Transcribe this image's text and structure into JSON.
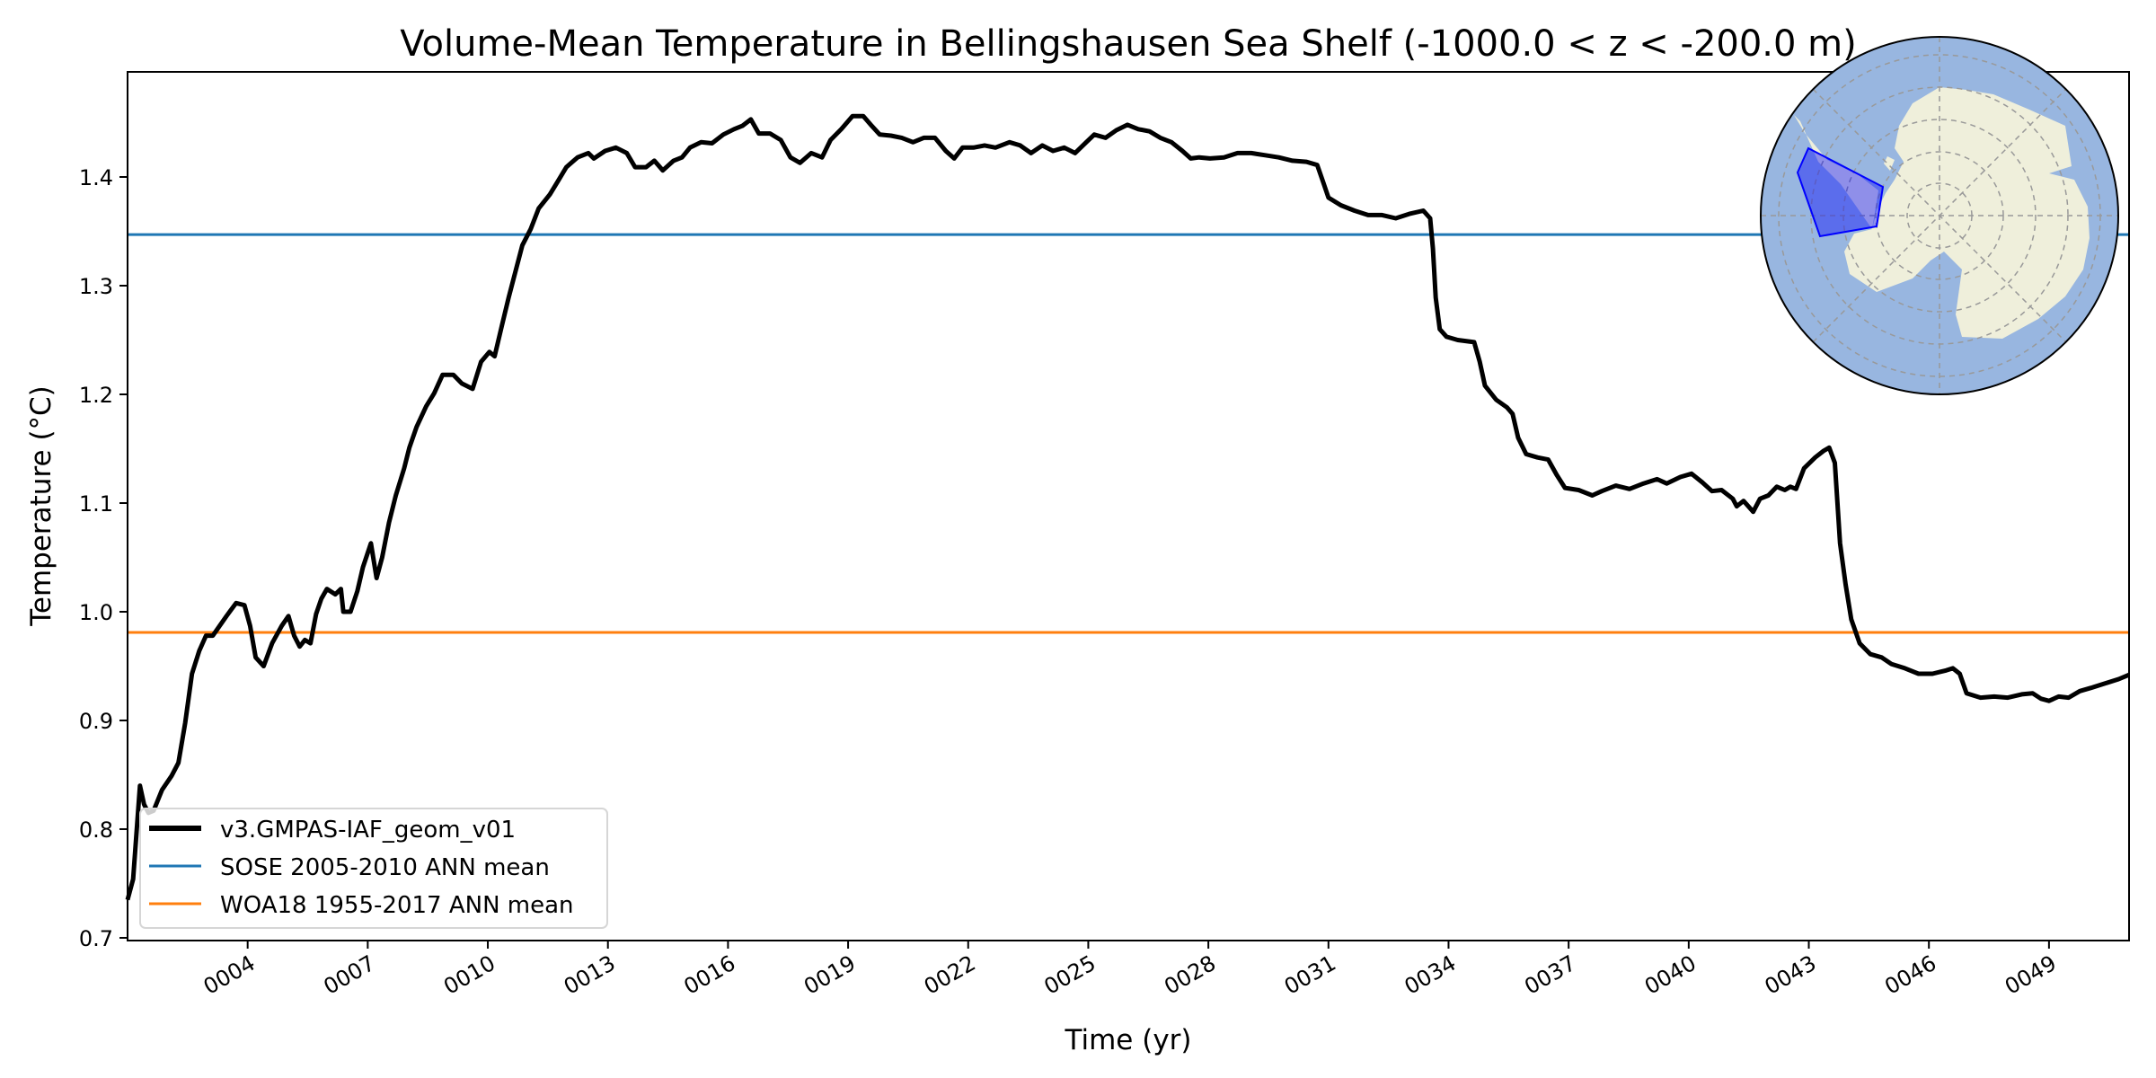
{
  "chart_data": {
    "type": "line",
    "title": "Volume-Mean Temperature in Bellingshausen Sea Shelf (-1000.0 < z < -200.0 m)",
    "xlabel": "Time (yr)",
    "ylabel": "Temperature ($^\\circ$C)",
    "ylabel_display": "Temperature (°C)",
    "xlim": [
      1,
      51
    ],
    "ylim": [
      0.6975,
      1.4967
    ],
    "xticks": [
      4,
      7,
      10,
      13,
      16,
      19,
      22,
      25,
      28,
      31,
      34,
      37,
      40,
      43,
      46,
      49
    ],
    "xtick_labels": [
      "0004",
      "0007",
      "0010",
      "0013",
      "0016",
      "0019",
      "0022",
      "0025",
      "0028",
      "0031",
      "0034",
      "0037",
      "0040",
      "0043",
      "0046",
      "0049"
    ],
    "yticks": [
      0.7,
      0.8,
      0.9,
      1.0,
      1.1,
      1.2,
      1.3,
      1.4
    ],
    "ytick_labels": [
      "0.7",
      "0.8",
      "0.9",
      "1.0",
      "1.1",
      "1.2",
      "1.3",
      "1.4"
    ],
    "grid": false,
    "legend_position": "bottom-left",
    "series": [
      {
        "name": "v3.GMPAS-IAF_geom_v01",
        "color": "#000000",
        "x": [
          1.0,
          1.14,
          1.24,
          1.31,
          1.41,
          1.52,
          1.65,
          1.86,
          2.1,
          2.27,
          2.44,
          2.61,
          2.79,
          2.96,
          3.13,
          3.3,
          3.47,
          3.71,
          3.92,
          4.06,
          4.2,
          4.4,
          4.61,
          4.85,
          5.02,
          5.16,
          5.3,
          5.43,
          5.57,
          5.71,
          5.84,
          5.98,
          6.19,
          6.33,
          6.39,
          6.57,
          6.74,
          6.88,
          7.08,
          7.22,
          7.36,
          7.53,
          7.7,
          7.91,
          8.04,
          8.22,
          8.46,
          8.66,
          8.87,
          9.14,
          9.35,
          9.62,
          9.83,
          10.04,
          10.17,
          10.35,
          10.52,
          10.69,
          10.86,
          11.07,
          11.27,
          11.55,
          11.75,
          11.96,
          12.24,
          12.51,
          12.65,
          12.93,
          13.2,
          13.47,
          13.68,
          13.95,
          14.16,
          14.37,
          14.64,
          14.85,
          15.05,
          15.33,
          15.6,
          15.88,
          16.15,
          16.36,
          16.57,
          16.77,
          17.05,
          17.32,
          17.56,
          17.8,
          18.08,
          18.35,
          18.56,
          18.83,
          19.11,
          19.38,
          19.59,
          19.79,
          20.07,
          20.34,
          20.62,
          20.89,
          21.17,
          21.44,
          21.65,
          21.86,
          22.13,
          22.41,
          22.68,
          23.03,
          23.3,
          23.57,
          23.85,
          24.12,
          24.4,
          24.67,
          24.95,
          25.15,
          25.43,
          25.7,
          25.98,
          26.25,
          26.53,
          26.8,
          27.08,
          27.35,
          27.56,
          27.77,
          28.04,
          28.39,
          28.73,
          29.07,
          29.42,
          29.76,
          30.1,
          30.45,
          30.72,
          30.86,
          31.0,
          31.31,
          31.65,
          31.99,
          32.34,
          32.68,
          33.02,
          33.37,
          33.54,
          33.61,
          33.68,
          33.78,
          33.95,
          34.23,
          34.64,
          34.78,
          34.91,
          35.19,
          35.46,
          35.6,
          35.74,
          35.94,
          36.22,
          36.49,
          36.7,
          36.91,
          37.25,
          37.59,
          37.83,
          38.18,
          38.52,
          38.87,
          39.21,
          39.45,
          39.79,
          40.07,
          40.34,
          40.58,
          40.82,
          41.1,
          41.2,
          41.37,
          41.61,
          41.78,
          41.99,
          42.2,
          42.4,
          42.54,
          42.68,
          42.88,
          43.16,
          43.37,
          43.51,
          43.65,
          43.78,
          43.92,
          44.06,
          44.27,
          44.54,
          44.82,
          45.06,
          45.4,
          45.74,
          46.09,
          46.43,
          46.6,
          46.77,
          46.94,
          47.29,
          47.63,
          47.97,
          48.32,
          48.59,
          48.8,
          49.0,
          49.24,
          49.49,
          49.77,
          50.05,
          50.4,
          50.74,
          51.0
        ],
        "y": [
          0.735,
          0.754,
          0.805,
          0.84,
          0.823,
          0.815,
          0.817,
          0.836,
          0.849,
          0.861,
          0.898,
          0.943,
          0.964,
          0.978,
          0.978,
          0.987,
          0.996,
          1.008,
          1.006,
          0.987,
          0.958,
          0.95,
          0.971,
          0.987,
          0.996,
          0.978,
          0.968,
          0.974,
          0.971,
          0.998,
          1.012,
          1.021,
          1.016,
          1.021,
          1.0,
          1.0,
          1.019,
          1.041,
          1.063,
          1.031,
          1.05,
          1.082,
          1.107,
          1.132,
          1.151,
          1.17,
          1.189,
          1.201,
          1.218,
          1.218,
          1.21,
          1.205,
          1.23,
          1.239,
          1.235,
          1.263,
          1.289,
          1.313,
          1.337,
          1.352,
          1.371,
          1.384,
          1.396,
          1.409,
          1.418,
          1.422,
          1.417,
          1.424,
          1.427,
          1.422,
          1.409,
          1.409,
          1.415,
          1.406,
          1.415,
          1.418,
          1.427,
          1.432,
          1.431,
          1.439,
          1.444,
          1.447,
          1.453,
          1.44,
          1.44,
          1.434,
          1.418,
          1.413,
          1.422,
          1.418,
          1.434,
          1.444,
          1.456,
          1.456,
          1.447,
          1.439,
          1.438,
          1.436,
          1.432,
          1.436,
          1.436,
          1.424,
          1.417,
          1.427,
          1.427,
          1.429,
          1.427,
          1.432,
          1.429,
          1.422,
          1.429,
          1.424,
          1.427,
          1.422,
          1.432,
          1.439,
          1.436,
          1.443,
          1.448,
          1.444,
          1.442,
          1.436,
          1.432,
          1.424,
          1.417,
          1.418,
          1.417,
          1.418,
          1.422,
          1.422,
          1.42,
          1.418,
          1.415,
          1.414,
          1.411,
          1.396,
          1.381,
          1.374,
          1.369,
          1.365,
          1.365,
          1.362,
          1.366,
          1.369,
          1.362,
          1.334,
          1.289,
          1.26,
          1.253,
          1.25,
          1.248,
          1.23,
          1.208,
          1.195,
          1.188,
          1.182,
          1.16,
          1.145,
          1.142,
          1.14,
          1.126,
          1.114,
          1.112,
          1.107,
          1.111,
          1.116,
          1.113,
          1.118,
          1.122,
          1.118,
          1.124,
          1.127,
          1.119,
          1.111,
          1.112,
          1.104,
          1.097,
          1.102,
          1.092,
          1.104,
          1.107,
          1.115,
          1.112,
          1.115,
          1.113,
          1.132,
          1.142,
          1.148,
          1.151,
          1.137,
          1.063,
          1.025,
          0.993,
          0.971,
          0.961,
          0.958,
          0.952,
          0.948,
          0.943,
          0.943,
          0.946,
          0.948,
          0.943,
          0.925,
          0.921,
          0.922,
          0.921,
          0.924,
          0.925,
          0.92,
          0.918,
          0.922,
          0.921,
          0.927,
          0.93,
          0.934,
          0.938,
          0.942
        ]
      },
      {
        "name": "SOSE 2005-2010 ANN mean",
        "color": "#1f77b4",
        "hline": 1.347
      },
      {
        "name": "WOA18 1955-2017 ANN mean",
        "color": "#ff7f0e",
        "hline": 0.981
      }
    ]
  },
  "inset_map": {
    "ocean_color": "#98b6e0",
    "land_color": "#efefdb",
    "region_color": "#0000ff"
  }
}
